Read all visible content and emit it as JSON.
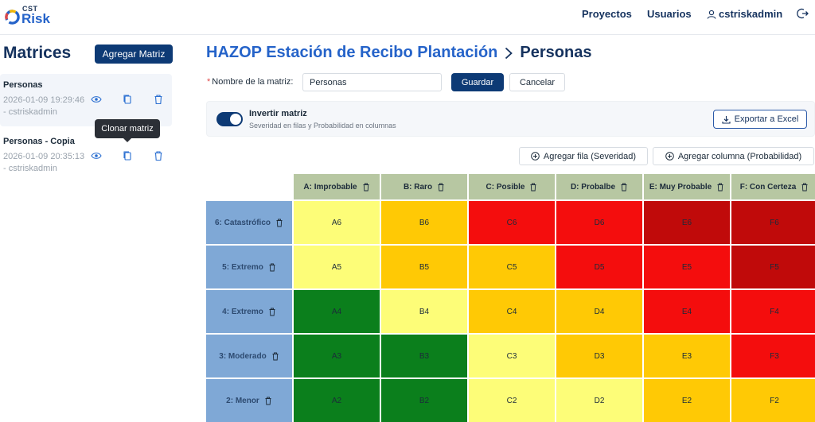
{
  "header": {
    "logo_small": "CST",
    "logo_big": "Risk",
    "nav": {
      "proyectos": "Proyectos",
      "usuarios": "Usuarios",
      "user": "cstriskadmin"
    }
  },
  "sidebar": {
    "title": "Matrices",
    "add_button": "Agregar Matriz",
    "tooltip": "Clonar matriz",
    "items": [
      {
        "name": "Personas",
        "date": "2026-01-09 19:29:46",
        "author": "- cstriskadmin"
      },
      {
        "name": "Personas - Copia",
        "date": "2026-01-09 20:35:13",
        "author": "- cstriskadmin"
      }
    ]
  },
  "main": {
    "breadcrumb": {
      "project": "HAZOP Estación de Recibo Plantación",
      "current": "Personas"
    },
    "form": {
      "label": "Nombre de la matriz:",
      "value": "Personas",
      "save": "Guardar",
      "cancel": "Cancelar"
    },
    "invert": {
      "title": "Invertir matriz",
      "subtitle": "Severidad en filas y Probabilidad en columnas",
      "enabled": true,
      "export": "Exportar a Excel"
    },
    "add_row": "Agregar fila (Severidad)",
    "add_col": "Agregar columna (Probabilidad)"
  },
  "matrix": {
    "columns": [
      "A: Improbable",
      "B: Raro",
      "C: Posible",
      "D: Probalbe",
      "E: Muy Probable",
      "F: Con Certeza"
    ],
    "rows": [
      {
        "label": "6: Catastrófico",
        "cells": [
          "A6",
          "B6",
          "C6",
          "D6",
          "E6",
          "F6"
        ],
        "levels": [
          "y",
          "o",
          "r",
          "r",
          "dr",
          "dr"
        ]
      },
      {
        "label": "5: Extremo",
        "cells": [
          "A5",
          "B5",
          "C5",
          "D5",
          "E5",
          "F5"
        ],
        "levels": [
          "y",
          "o",
          "o",
          "r",
          "r",
          "dr"
        ]
      },
      {
        "label": "4: Extremo",
        "cells": [
          "A4",
          "B4",
          "C4",
          "D4",
          "E4",
          "F4"
        ],
        "levels": [
          "g",
          "y",
          "o",
          "o",
          "r",
          "r"
        ]
      },
      {
        "label": "3: Moderado",
        "cells": [
          "A3",
          "B3",
          "C3",
          "D3",
          "E3",
          "F3"
        ],
        "levels": [
          "g",
          "g",
          "y",
          "o",
          "o",
          "r"
        ]
      },
      {
        "label": "2: Menor",
        "cells": [
          "A2",
          "B2",
          "C2",
          "D2",
          "E2",
          "F2"
        ],
        "levels": [
          "g",
          "g",
          "y",
          "y",
          "o",
          "o"
        ]
      }
    ],
    "colors": {
      "g": "#0b7f1c",
      "y": "#fdfd78",
      "o": "#ffc905",
      "r": "#f40d0d",
      "dr": "#c00a0a"
    }
  }
}
